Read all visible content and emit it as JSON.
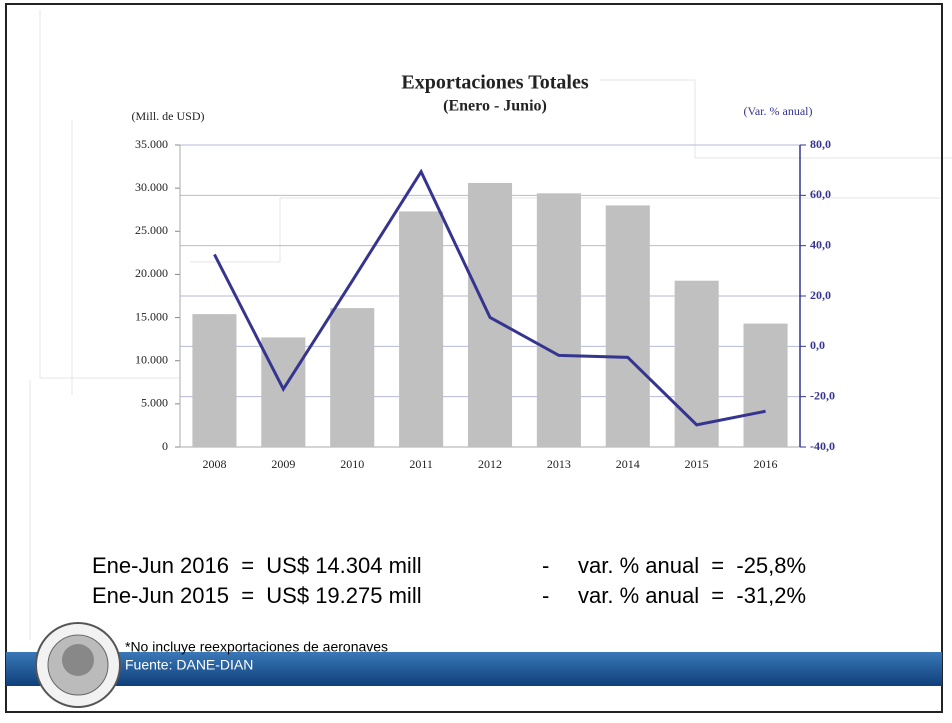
{
  "chart_data": {
    "type": "bar",
    "title": "Exportaciones Totales",
    "subtitle": "(Enero - Junio)",
    "y_label": "(Mill. de USD)",
    "y2_label": "(Var. % anual)",
    "categories": [
      "2008",
      "2009",
      "2010",
      "2011",
      "2012",
      "2013",
      "2014",
      "2015",
      "2016"
    ],
    "series": [
      {
        "type": "bar",
        "color": "#c0c0c0",
        "values": [
          15400,
          12700,
          16100,
          27300,
          30600,
          29400,
          28000,
          19275,
          14304
        ]
      },
      {
        "type": "line",
        "axis": "y2",
        "color": "#35358f",
        "values": [
          36.5,
          -17,
          26,
          69.4,
          11.5,
          -3.6,
          -4.4,
          -31.2,
          -25.8
        ]
      }
    ],
    "ylim": [
      0,
      35000
    ],
    "yticks": [
      0,
      {
        "value": 5000,
        "label": "5.000"
      },
      {
        "value": 10000,
        "label": "10.000"
      },
      {
        "value": 15000,
        "label": "15.000"
      },
      {
        "value": 20000,
        "label": "20.000"
      },
      {
        "value": 25000,
        "label": "25.000"
      },
      {
        "value": 30000,
        "label": "30.000"
      },
      {
        "value": 35000,
        "label": "35.000"
      }
    ],
    "y2lim": [
      -40,
      80
    ],
    "y2ticks": [
      {
        "value": -40,
        "label": "-40,0"
      },
      {
        "value": -20,
        "label": "-20,0"
      },
      {
        "value": 0,
        "label": "0,0"
      },
      {
        "value": 20,
        "label": "20,0"
      },
      {
        "value": 40,
        "label": "40,0"
      },
      {
        "value": 60,
        "label": "60,0"
      },
      {
        "value": 80,
        "label": "80,0"
      }
    ],
    "grid": true
  },
  "summary": [
    [
      "Ene-Jun 2016  =  US$ 14.304 mill",
      "-",
      "var. % anual  =  -25,8%"
    ],
    [
      "Ene-Jun 2015  =  US$ 19.275 mill",
      "-",
      "var. % anual  =  -31,2%"
    ]
  ],
  "footnote": "*No incluye reexportaciones de aeronaves",
  "source": "Fuente: DANE-DIAN"
}
